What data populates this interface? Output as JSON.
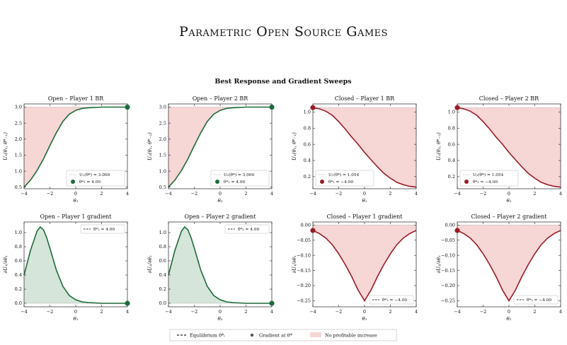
{
  "page": {
    "title": "Parametric Open Source Games"
  },
  "figure": {
    "suptitle": "Best Response and Gradient Sweeps",
    "legend": {
      "equilibrium": "Equilibrium θ*ᵢ",
      "gradient": "Gradient at θ*",
      "shade": "No profitable increase"
    }
  },
  "colors": {
    "open": "#1e6b3a",
    "closed": "#991c25",
    "shade_open": "#f7d6d6",
    "shade_open_grad": "#d5e5d9",
    "shade_closed": "#f7d6d6"
  },
  "chart_data": [
    {
      "id": "open-p1-br",
      "type": "line",
      "title": "Open – Player 1 BR",
      "xlabel": "θ₁",
      "ylabel": "U₁(θ₁, θ*₋₁)",
      "xlim": [
        -4,
        4
      ],
      "ylim": [
        0.45,
        3.1
      ],
      "xticks": [
        -4,
        -2,
        0,
        2,
        4
      ],
      "yticks": [
        0.5,
        1.0,
        1.5,
        2.0,
        2.5,
        3.0
      ],
      "series": [
        {
          "x": [
            -4,
            -3.5,
            -3,
            -2.5,
            -2,
            -1.5,
            -1,
            -0.5,
            0,
            0.5,
            1,
            1.5,
            2,
            3,
            4
          ],
          "y": [
            0.5,
            0.72,
            1.02,
            1.38,
            1.8,
            2.2,
            2.55,
            2.78,
            2.9,
            2.96,
            2.98,
            2.99,
            3.0,
            3.0,
            3.0
          ]
        }
      ],
      "reference_line": 3.0,
      "shade": "below-reference",
      "marker": {
        "x": 4,
        "y": 3.0
      },
      "legend": [
        "U₁(θ*) = 3.000",
        "θ*₁ = 4.00"
      ],
      "legend_pos": "lower-right",
      "palette": "open"
    },
    {
      "id": "open-p2-br",
      "type": "line",
      "title": "Open – Player 2 BR",
      "xlabel": "θ₂",
      "ylabel": "U₂(θ₂, θ*₋₂)",
      "xlim": [
        -4,
        4
      ],
      "ylim": [
        0.45,
        3.1
      ],
      "xticks": [
        -4,
        -2,
        0,
        2,
        4
      ],
      "yticks": [
        0.5,
        1.0,
        1.5,
        2.0,
        2.5,
        3.0
      ],
      "series": [
        {
          "x": [
            -4,
            -3.5,
            -3,
            -2.5,
            -2,
            -1.5,
            -1,
            -0.5,
            0,
            0.5,
            1,
            1.5,
            2,
            3,
            4
          ],
          "y": [
            0.5,
            0.72,
            1.02,
            1.38,
            1.8,
            2.2,
            2.55,
            2.78,
            2.9,
            2.96,
            2.98,
            2.99,
            3.0,
            3.0,
            3.0
          ]
        }
      ],
      "reference_line": 3.0,
      "shade": "below-reference",
      "marker": {
        "x": 4,
        "y": 3.0
      },
      "legend": [
        "U₂(θ*) = 3.000",
        "θ*₂ = 4.00"
      ],
      "legend_pos": "lower-right",
      "palette": "open"
    },
    {
      "id": "closed-p1-br",
      "type": "line",
      "title": "Closed – Player 1 BR",
      "xlabel": "θ₁",
      "ylabel": "U₁(θ₁, θ*₋₁)",
      "xlim": [
        -4,
        4
      ],
      "ylim": [
        0.05,
        1.1
      ],
      "xticks": [
        -4,
        -2,
        0,
        2,
        4
      ],
      "yticks": [
        0.2,
        0.4,
        0.6,
        0.8,
        1.0
      ],
      "series": [
        {
          "x": [
            -4,
            -3.5,
            -3,
            -2.5,
            -2,
            -1.5,
            -1,
            -0.5,
            0,
            0.5,
            1,
            1.5,
            2,
            2.5,
            3,
            3.5,
            4
          ],
          "y": [
            1.054,
            1.04,
            1.01,
            0.96,
            0.88,
            0.79,
            0.69,
            0.6,
            0.5,
            0.41,
            0.32,
            0.24,
            0.18,
            0.13,
            0.1,
            0.08,
            0.07
          ]
        }
      ],
      "reference_line": 1.054,
      "shade": "above-curve",
      "marker": {
        "x": -4,
        "y": 1.054
      },
      "legend": [
        "U₁(θ*) = 1.054",
        "θ*₁ = −4.00"
      ],
      "legend_pos": "lower-left",
      "palette": "closed"
    },
    {
      "id": "closed-p2-br",
      "type": "line",
      "title": "Closed – Player 2 BR",
      "xlabel": "θ₂",
      "ylabel": "U₂(θ₂, θ*₋₂)",
      "xlim": [
        -4,
        4
      ],
      "ylim": [
        0.05,
        1.1
      ],
      "xticks": [
        -4,
        -2,
        0,
        2,
        4
      ],
      "yticks": [
        0.2,
        0.4,
        0.6,
        0.8,
        1.0
      ],
      "series": [
        {
          "x": [
            -4,
            -3.5,
            -3,
            -2.5,
            -2,
            -1.5,
            -1,
            -0.5,
            0,
            0.5,
            1,
            1.5,
            2,
            2.5,
            3,
            3.5,
            4
          ],
          "y": [
            1.054,
            1.04,
            1.01,
            0.96,
            0.88,
            0.79,
            0.69,
            0.6,
            0.5,
            0.41,
            0.32,
            0.24,
            0.18,
            0.13,
            0.1,
            0.08,
            0.07
          ]
        }
      ],
      "reference_line": 1.054,
      "shade": "above-curve",
      "marker": {
        "x": -4,
        "y": 1.054
      },
      "legend": [
        "U₂(θ*) = 1.054",
        "θ*₂ = −4.00"
      ],
      "legend_pos": "lower-left",
      "palette": "closed"
    },
    {
      "id": "open-p1-grad",
      "type": "area",
      "title": "Open – Player 1 gradient",
      "xlabel": "θ₁",
      "ylabel": "∂U₁/∂θ₁",
      "xlim": [
        -4,
        4
      ],
      "ylim": [
        -0.05,
        1.15
      ],
      "xticks": [
        -4,
        -2,
        0,
        2,
        4
      ],
      "yticks": [
        0.0,
        0.2,
        0.4,
        0.6,
        0.8,
        1.0
      ],
      "series": [
        {
          "x": [
            -4,
            -3.5,
            -3,
            -2.75,
            -2.5,
            -2.25,
            -2,
            -1.5,
            -1,
            -0.5,
            0,
            0.5,
            1,
            2,
            3,
            4
          ],
          "y": [
            0.4,
            0.75,
            1.02,
            1.08,
            1.04,
            0.93,
            0.78,
            0.47,
            0.24,
            0.11,
            0.05,
            0.02,
            0.01,
            0.0,
            0.0,
            0.0
          ]
        }
      ],
      "reference_line": 0.0,
      "shade": "under-curve",
      "marker": {
        "x": 4,
        "y": 0.0
      },
      "legend": [
        "θ*₁ = 4.00"
      ],
      "legend_pos": "upper-right",
      "palette": "open"
    },
    {
      "id": "open-p2-grad",
      "type": "area",
      "title": "Open – Player 2 gradient",
      "xlabel": "θ₂",
      "ylabel": "∂U₂/∂θ₂",
      "xlim": [
        -4,
        4
      ],
      "ylim": [
        -0.05,
        1.15
      ],
      "xticks": [
        -4,
        -2,
        0,
        2,
        4
      ],
      "yticks": [
        0.0,
        0.2,
        0.4,
        0.6,
        0.8,
        1.0
      ],
      "series": [
        {
          "x": [
            -4,
            -3.5,
            -3,
            -2.75,
            -2.5,
            -2.25,
            -2,
            -1.5,
            -1,
            -0.5,
            0,
            0.5,
            1,
            2,
            3,
            4
          ],
          "y": [
            0.4,
            0.75,
            1.02,
            1.08,
            1.04,
            0.93,
            0.78,
            0.47,
            0.24,
            0.11,
            0.05,
            0.02,
            0.01,
            0.0,
            0.0,
            0.0
          ]
        }
      ],
      "reference_line": 0.0,
      "shade": "under-curve",
      "marker": {
        "x": 4,
        "y": 0.0
      },
      "legend": [
        "θ*₂ = 4.00"
      ],
      "legend_pos": "upper-right",
      "palette": "open"
    },
    {
      "id": "closed-p1-grad",
      "type": "area",
      "title": "Closed – Player 1 gradient",
      "xlabel": "θ₁",
      "ylabel": "∂U₁/∂θ₁",
      "xlim": [
        -4,
        4
      ],
      "ylim": [
        -0.27,
        0.01
      ],
      "xticks": [
        -4,
        -2,
        0,
        2,
        4
      ],
      "yticks": [
        0.0,
        -0.05,
        -0.1,
        -0.15,
        -0.2,
        -0.25
      ],
      "series": [
        {
          "x": [
            -4,
            -3.5,
            -3,
            -2.5,
            -2,
            -1.5,
            -1,
            -0.5,
            0,
            0.5,
            1,
            1.5,
            2,
            2.5,
            3,
            3.5,
            4
          ],
          "y": [
            -0.018,
            -0.028,
            -0.043,
            -0.065,
            -0.095,
            -0.13,
            -0.17,
            -0.215,
            -0.25,
            -0.215,
            -0.17,
            -0.13,
            -0.095,
            -0.065,
            -0.043,
            -0.028,
            -0.018
          ]
        }
      ],
      "reference_line": 0.0,
      "shade": "above-curve",
      "marker": {
        "x": -4,
        "y": -0.018
      },
      "legend": [
        "θ*₁ = −4.00"
      ],
      "legend_pos": "lower-right",
      "palette": "closed"
    },
    {
      "id": "closed-p2-grad",
      "type": "area",
      "title": "Closed – Player 2 gradient",
      "xlabel": "θ₂",
      "ylabel": "∂U₂/∂θ₂",
      "xlim": [
        -4,
        4
      ],
      "ylim": [
        -0.27,
        0.01
      ],
      "xticks": [
        -4,
        -2,
        0,
        2,
        4
      ],
      "yticks": [
        0.0,
        -0.05,
        -0.1,
        -0.15,
        -0.2,
        -0.25
      ],
      "series": [
        {
          "x": [
            -4,
            -3.5,
            -3,
            -2.5,
            -2,
            -1.5,
            -1,
            -0.5,
            0,
            0.5,
            1,
            1.5,
            2,
            2.5,
            3,
            3.5,
            4
          ],
          "y": [
            -0.018,
            -0.028,
            -0.043,
            -0.065,
            -0.095,
            -0.13,
            -0.17,
            -0.215,
            -0.25,
            -0.215,
            -0.17,
            -0.13,
            -0.095,
            -0.065,
            -0.043,
            -0.028,
            -0.018
          ]
        }
      ],
      "reference_line": 0.0,
      "shade": "above-curve",
      "marker": {
        "x": -4,
        "y": -0.018
      },
      "legend": [
        "θ*₂ = −4.00"
      ],
      "legend_pos": "lower-right",
      "palette": "closed"
    }
  ]
}
